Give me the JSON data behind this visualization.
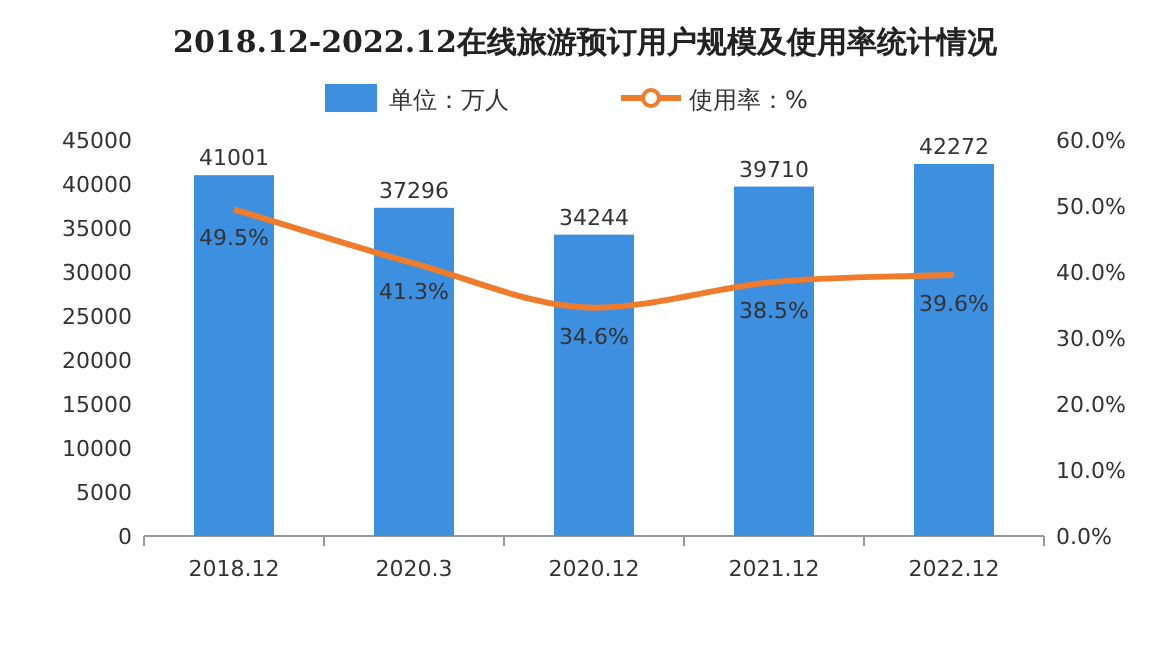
{
  "chart_data": {
    "type": "bar",
    "title": "2018.12-2022.12在线旅游预订用户规模及使用率统计情况",
    "categories": [
      "2018.12",
      "2020.3",
      "2020.12",
      "2021.12",
      "2022.12"
    ],
    "series": [
      {
        "name": "单位：万人",
        "color": "#3d8fe0",
        "values": [
          41001,
          37296,
          34244,
          39710,
          42272
        ],
        "value_labels": [
          "41001",
          "37296",
          "34244",
          "39710",
          "42272"
        ]
      },
      {
        "name": "使用率：%",
        "type": "line",
        "axis": "y2",
        "color": "#ef7b2b",
        "values": [
          49.5,
          41.3,
          34.6,
          38.5,
          39.6
        ],
        "value_labels": [
          "49.5%",
          "41.3%",
          "34.6%",
          "38.5%",
          "39.6%"
        ],
        "marker": "none",
        "line_style": "solid"
      }
    ],
    "ylim": [
      0,
      45000
    ],
    "yticks": [
      0,
      5000,
      10000,
      15000,
      20000,
      25000,
      30000,
      35000,
      40000,
      45000
    ],
    "y2lim": [
      0,
      60
    ],
    "y2ticks": [
      {
        "value": 0,
        "label": "0.0%"
      },
      {
        "value": 10,
        "label": "10.0%"
      },
      {
        "value": 20,
        "label": "20.0%"
      },
      {
        "value": 30,
        "label": "30.0%"
      },
      {
        "value": 40,
        "label": "40.0%"
      },
      {
        "value": 50,
        "label": "50.0%"
      },
      {
        "value": 60,
        "label": "60.0%"
      }
    ],
    "legend": "top",
    "grid": false
  }
}
